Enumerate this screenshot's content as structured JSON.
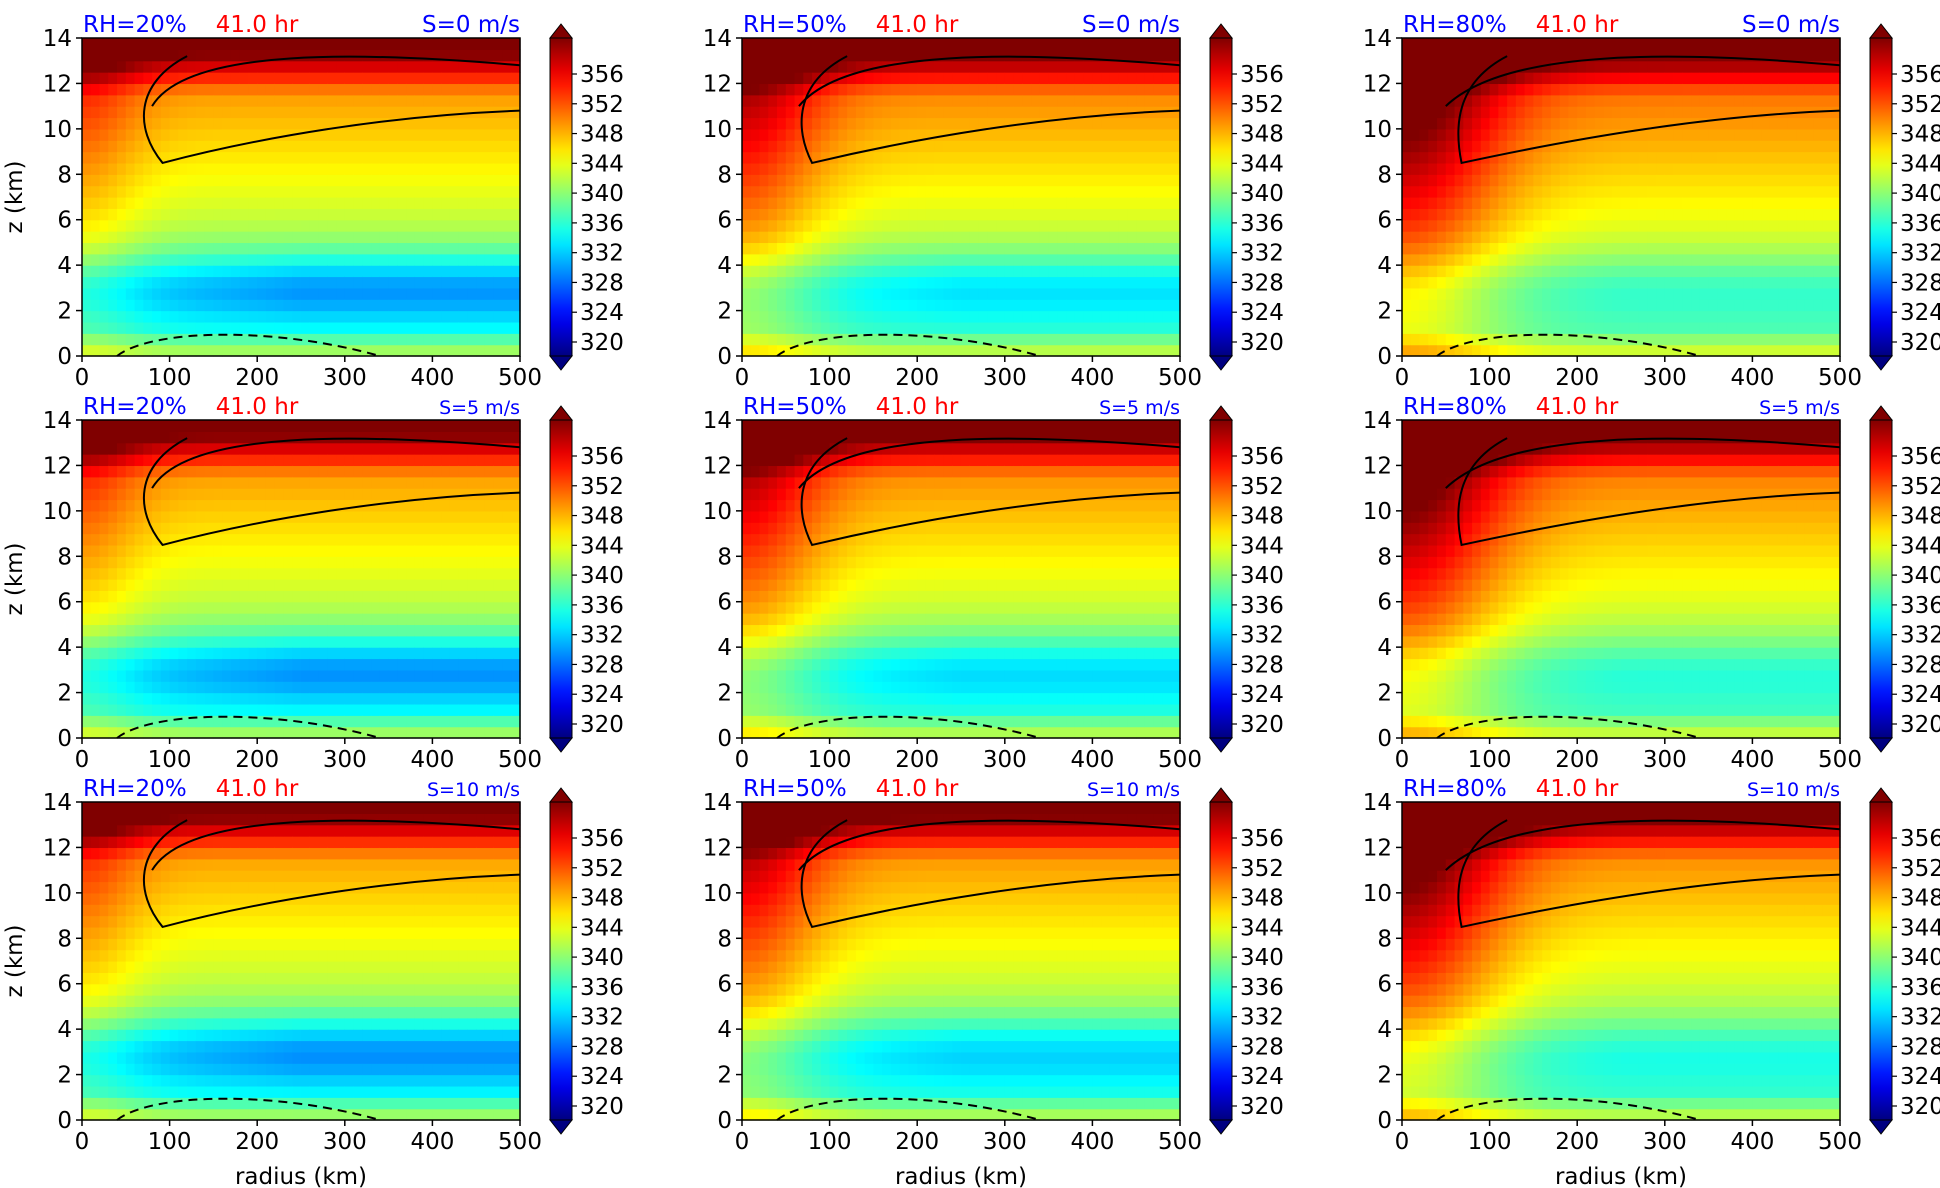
{
  "figure": {
    "ylabel": "z (km)",
    "xlabel": "radius (km)",
    "colorbar": {
      "ticks": [
        320,
        324,
        328,
        332,
        336,
        340,
        344,
        348,
        352,
        356
      ],
      "tick_labels": [
        "320",
        "324",
        "328",
        "332",
        "336",
        "340",
        "344",
        "348",
        "352",
        "356"
      ],
      "colormap": "jet",
      "extend": "both"
    },
    "colors": {
      "rh_label": "#0000ff",
      "time_label": "#ff0000",
      "shear_label": "#0000ff",
      "contour": "#000000"
    }
  },
  "chart_data": [
    {
      "type": "heatmap",
      "rh_label": "RH=20%",
      "time_label": "41.0 hr",
      "shear_label": "S=0 m/s",
      "shear_small": false,
      "rh": 20,
      "shear": 0,
      "x_ticks": [
        "0",
        "100",
        "200",
        "300",
        "400",
        "500"
      ],
      "y_ticks": [
        "0",
        "2",
        "4",
        "6",
        "8",
        "10",
        "12",
        "14"
      ],
      "xlim": [
        0,
        500
      ],
      "ylim": [
        0,
        14
      ],
      "clim": [
        320,
        356
      ]
    },
    {
      "type": "heatmap",
      "rh_label": "RH=50%",
      "time_label": "41.0 hr",
      "shear_label": "S=0 m/s",
      "shear_small": false,
      "rh": 50,
      "shear": 0,
      "x_ticks": [
        "0",
        "100",
        "200",
        "300",
        "400",
        "500"
      ],
      "y_ticks": [
        "0",
        "2",
        "4",
        "6",
        "8",
        "10",
        "12",
        "14"
      ],
      "xlim": [
        0,
        500
      ],
      "ylim": [
        0,
        14
      ],
      "clim": [
        320,
        356
      ]
    },
    {
      "type": "heatmap",
      "rh_label": "RH=80%",
      "time_label": "41.0 hr",
      "shear_label": "S=0 m/s",
      "shear_small": false,
      "rh": 80,
      "shear": 0,
      "x_ticks": [
        "0",
        "100",
        "200",
        "300",
        "400",
        "500"
      ],
      "y_ticks": [
        "0",
        "2",
        "4",
        "6",
        "8",
        "10",
        "12",
        "14"
      ],
      "xlim": [
        0,
        500
      ],
      "ylim": [
        0,
        14
      ],
      "clim": [
        320,
        356
      ]
    },
    {
      "type": "heatmap",
      "rh_label": "RH=20%",
      "time_label": "41.0 hr",
      "shear_label": "S=5 m/s",
      "shear_small": true,
      "rh": 20,
      "shear": 5,
      "x_ticks": [
        "0",
        "100",
        "200",
        "300",
        "400",
        "500"
      ],
      "y_ticks": [
        "0",
        "2",
        "4",
        "6",
        "8",
        "10",
        "12",
        "14"
      ],
      "xlim": [
        0,
        500
      ],
      "ylim": [
        0,
        14
      ],
      "clim": [
        320,
        356
      ]
    },
    {
      "type": "heatmap",
      "rh_label": "RH=50%",
      "time_label": "41.0 hr",
      "shear_label": "S=5 m/s",
      "shear_small": true,
      "rh": 50,
      "shear": 5,
      "x_ticks": [
        "0",
        "100",
        "200",
        "300",
        "400",
        "500"
      ],
      "y_ticks": [
        "0",
        "2",
        "4",
        "6",
        "8",
        "10",
        "12",
        "14"
      ],
      "xlim": [
        0,
        500
      ],
      "ylim": [
        0,
        14
      ],
      "clim": [
        320,
        356
      ]
    },
    {
      "type": "heatmap",
      "rh_label": "RH=80%",
      "time_label": "41.0 hr",
      "shear_label": "S=5 m/s",
      "shear_small": true,
      "rh": 80,
      "shear": 5,
      "x_ticks": [
        "0",
        "100",
        "200",
        "300",
        "400",
        "500"
      ],
      "y_ticks": [
        "0",
        "2",
        "4",
        "6",
        "8",
        "10",
        "12",
        "14"
      ],
      "xlim": [
        0,
        500
      ],
      "ylim": [
        0,
        14
      ],
      "clim": [
        320,
        356
      ]
    },
    {
      "type": "heatmap",
      "rh_label": "RH=20%",
      "time_label": "41.0 hr",
      "shear_label": "S=10 m/s",
      "shear_small": true,
      "rh": 20,
      "shear": 10,
      "x_ticks": [
        "0",
        "100",
        "200",
        "300",
        "400",
        "500"
      ],
      "y_ticks": [
        "0",
        "2",
        "4",
        "6",
        "8",
        "10",
        "12",
        "14"
      ],
      "xlim": [
        0,
        500
      ],
      "ylim": [
        0,
        14
      ],
      "clim": [
        320,
        356
      ]
    },
    {
      "type": "heatmap",
      "rh_label": "RH=50%",
      "time_label": "41.0 hr",
      "shear_label": "S=10 m/s",
      "shear_small": true,
      "rh": 50,
      "shear": 10,
      "x_ticks": [
        "0",
        "100",
        "200",
        "300",
        "400",
        "500"
      ],
      "y_ticks": [
        "0",
        "2",
        "4",
        "6",
        "8",
        "10",
        "12",
        "14"
      ],
      "xlim": [
        0,
        500
      ],
      "ylim": [
        0,
        14
      ],
      "clim": [
        320,
        356
      ]
    },
    {
      "type": "heatmap",
      "rh_label": "RH=80%",
      "time_label": "41.0 hr",
      "shear_label": "S=10 m/s",
      "shear_small": true,
      "rh": 80,
      "shear": 10,
      "x_ticks": [
        "0",
        "100",
        "200",
        "300",
        "400",
        "500"
      ],
      "y_ticks": [
        "0",
        "2",
        "4",
        "6",
        "8",
        "10",
        "12",
        "14"
      ],
      "xlim": [
        0,
        500
      ],
      "ylim": [
        0,
        14
      ],
      "clim": [
        320,
        356
      ]
    }
  ]
}
